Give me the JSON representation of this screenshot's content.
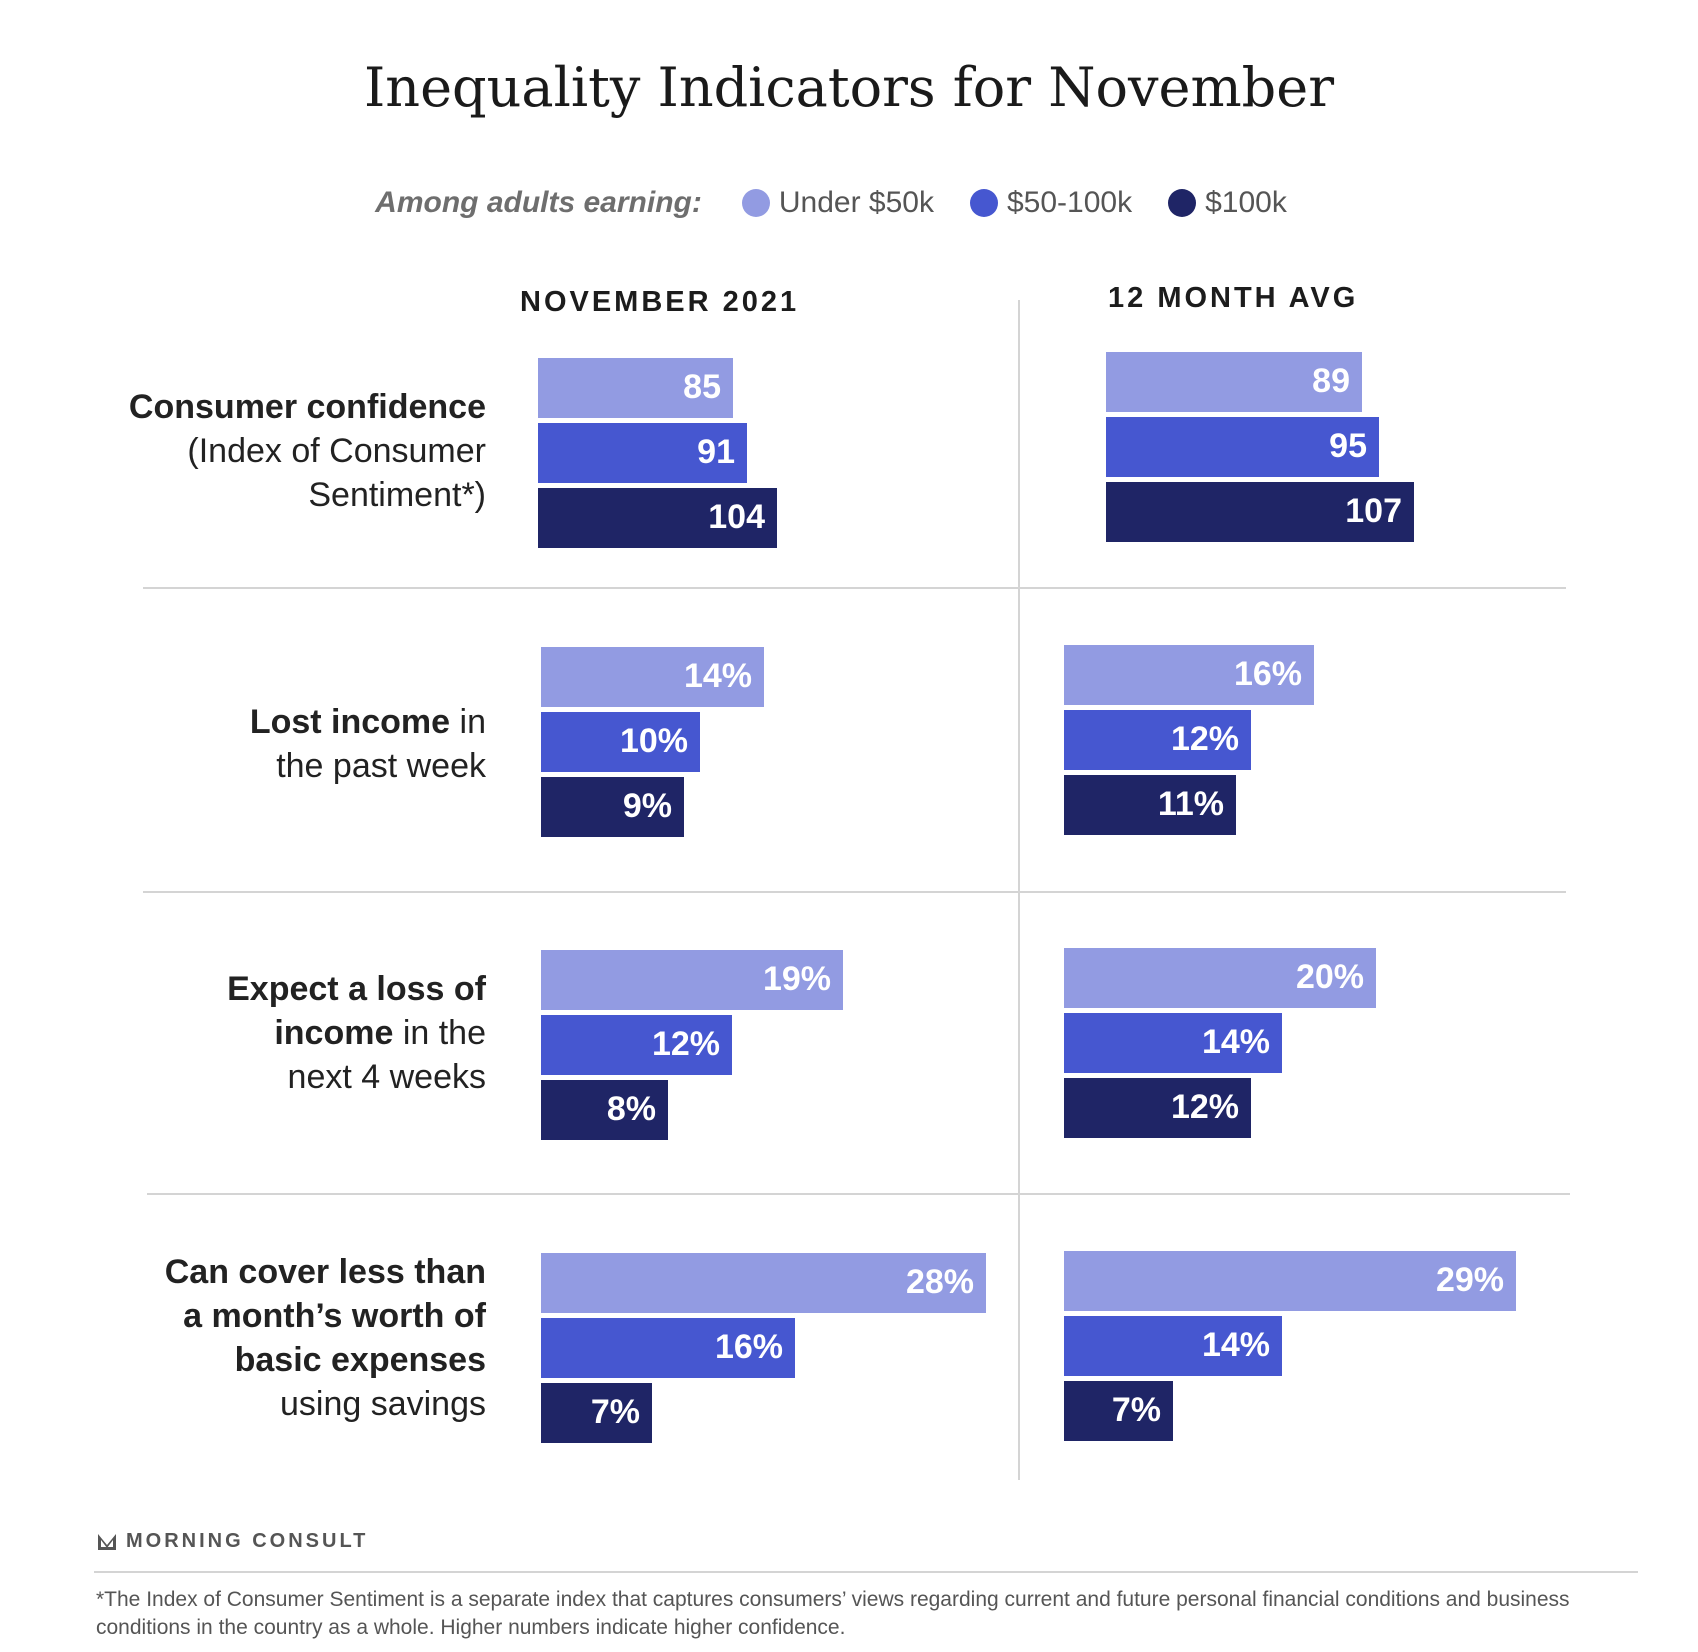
{
  "title": "Inequality Indicators for November",
  "legend": {
    "lead": "Among adults earning:",
    "items": [
      {
        "label": "Under $50k",
        "color": "#929be2"
      },
      {
        "label": "$50-100k",
        "color": "#4657d0"
      },
      {
        "label": "$100k",
        "color": "#1f2566"
      }
    ]
  },
  "columns": [
    "NOVEMBER 2021",
    "12 MONTH AVG"
  ],
  "rows": [
    {
      "label_bold": "Consumer confidence",
      "label_rest": "(Index of Consumer Sentiment*)"
    },
    {
      "label_bold": "Lost income",
      "label_rest": " in the past week"
    },
    {
      "label_bold": "Expect a loss of income",
      "label_rest": " in the next 4 weeks"
    },
    {
      "label_bold": "Can cover less than a month’s worth of basic expenses",
      "label_rest": " using savings"
    }
  ],
  "chart_data": {
    "type": "bar",
    "orientation": "horizontal",
    "title": "Inequality Indicators for November",
    "series_names": [
      "Under $50k",
      "$50-100k",
      "$100k"
    ],
    "panels": [
      {
        "row": "Consumer confidence (Index of Consumer Sentiment*)",
        "column": "NOVEMBER 2021",
        "values": [
          85,
          91,
          104
        ],
        "labels": [
          "85",
          "91",
          "104"
        ],
        "unit": "index"
      },
      {
        "row": "Consumer confidence (Index of Consumer Sentiment*)",
        "column": "12 MONTH AVG",
        "values": [
          89,
          95,
          107
        ],
        "labels": [
          "89",
          "95",
          "107"
        ],
        "unit": "index"
      },
      {
        "row": "Lost income in the past week",
        "column": "NOVEMBER 2021",
        "values": [
          14,
          10,
          9
        ],
        "labels": [
          "14%",
          "10%",
          "9%"
        ],
        "unit": "%"
      },
      {
        "row": "Lost income in the past week",
        "column": "12 MONTH AVG",
        "values": [
          16,
          12,
          11
        ],
        "labels": [
          "16%",
          "12%",
          "11%"
        ],
        "unit": "%"
      },
      {
        "row": "Expect a loss of income in the next 4 weeks",
        "column": "NOVEMBER 2021",
        "values": [
          19,
          12,
          8
        ],
        "labels": [
          "19%",
          "12%",
          "8%"
        ],
        "unit": "%"
      },
      {
        "row": "Expect a loss of income in the next 4 weeks",
        "column": "12 MONTH AVG",
        "values": [
          20,
          14,
          12
        ],
        "labels": [
          "20%",
          "14%",
          "12%"
        ],
        "unit": "%"
      },
      {
        "row": "Can cover less than a month’s worth of basic expenses using savings",
        "column": "NOVEMBER 2021",
        "values": [
          28,
          16,
          7
        ],
        "labels": [
          "28%",
          "16%",
          "7%"
        ],
        "unit": "%"
      },
      {
        "row": "Can cover less than a month’s worth of basic expenses using savings",
        "column": "12 MONTH AVG",
        "values": [
          29,
          14,
          7
        ],
        "labels": [
          "29%",
          "14%",
          "7%"
        ],
        "unit": "%"
      }
    ]
  },
  "brand": "MORNING CONSULT",
  "footnote": "*The Index of Consumer Sentiment is a separate index that captures consumers’ views regarding current and future personal financial conditions and business conditions in the country as a whole. Higher numbers indicate higher confidence."
}
